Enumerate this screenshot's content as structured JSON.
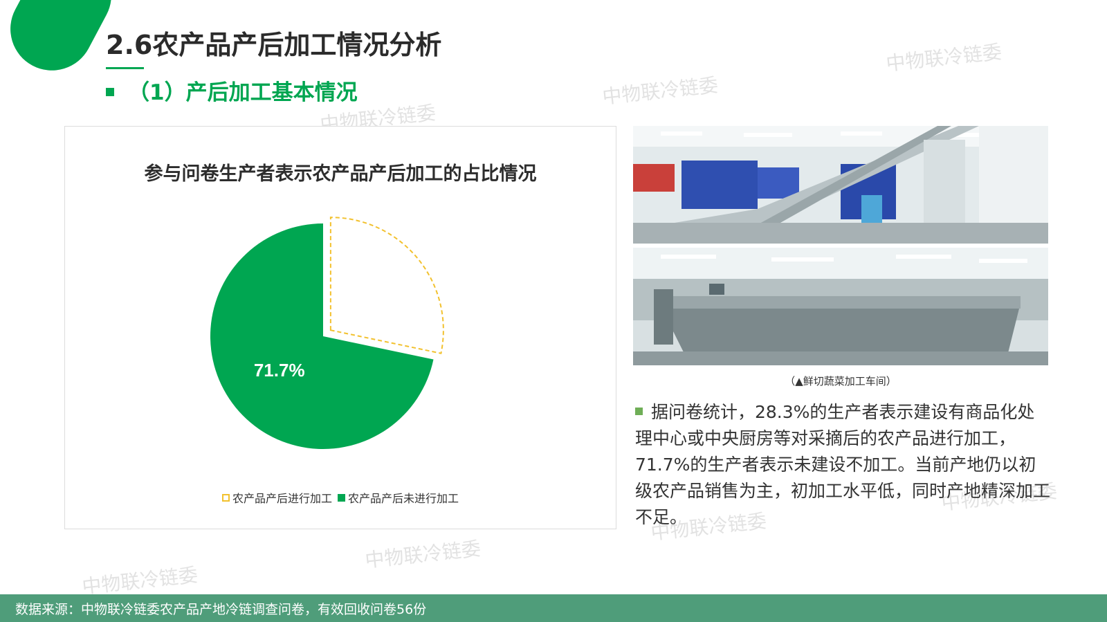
{
  "colors": {
    "accent": "#00a651",
    "dash": "#f2c12e",
    "footer_bg": "#4f9d7a"
  },
  "header": {
    "title": "2.6农产品产后加工情况分析",
    "section": "（1）产后加工基本情况"
  },
  "watermark_text": "中物联冷链委",
  "chart_data": {
    "type": "pie",
    "title": "参与问卷生产者表示农产品产后加工的占比情况",
    "slices": [
      {
        "label": "农产品产后进行加工",
        "value": 28.3,
        "style": "dashed-outline",
        "color": "#f2c12e"
      },
      {
        "label": "农产品产后未进行加工",
        "value": 71.7,
        "style": "filled",
        "color": "#00a651",
        "data_label": "71.7%"
      }
    ],
    "legend_placement": "bottom"
  },
  "photos": {
    "caption": "（▲鲜切蔬菜加工车间）"
  },
  "description": "据问卷统计，28.3%的生产者表示建设有商品化处理中心或中央厨房等对采摘后的农产品进行加工，71.7%的生产者表示未建设不加工。当前产地仍以初级农产品销售为主，初加工水平低，同时产地精深加工不足。",
  "footer": {
    "source": "数据来源：中物联冷链委农产品产地冷链调查问卷，有效回收问卷56份"
  }
}
